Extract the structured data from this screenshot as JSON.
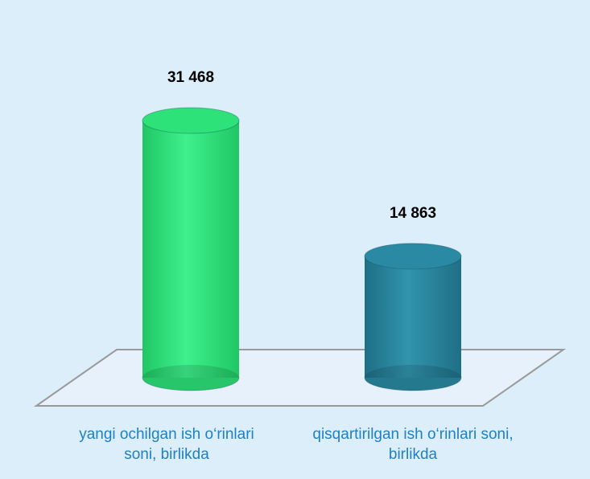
{
  "chart_data": {
    "type": "cylinder-bar",
    "categories": [
      "yangi ochilgan ish o‘rinlari soni, birlikda",
      "qisqartirilgan ish o‘rinlari soni, birlikda"
    ],
    "values": [
      31468,
      14863
    ],
    "value_labels": [
      "31 468",
      "14 863"
    ],
    "colors": [
      "#2ee27a",
      "#2a8aa3"
    ]
  }
}
